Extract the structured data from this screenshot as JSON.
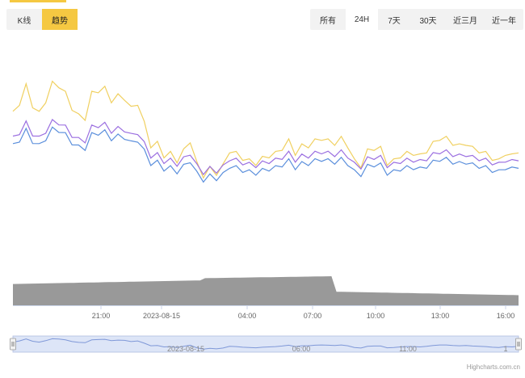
{
  "tabs_left": {
    "kline": "K线",
    "trend": "趋势",
    "active": "trend"
  },
  "range_buttons": [
    {
      "id": "all",
      "label": "所有"
    },
    {
      "id": "24h",
      "label": "24H",
      "active": true
    },
    {
      "id": "7d",
      "label": "7天"
    },
    {
      "id": "30d",
      "label": "30天"
    },
    {
      "id": "3m",
      "label": "近三月"
    },
    {
      "id": "1y",
      "label": "近一年"
    }
  ],
  "credit": "Highcharts.com.cn",
  "colors": {
    "accent": "#f5c842",
    "series_yellow": "#f0d060",
    "series_purple": "#9b6fe0",
    "series_blue": "#5b8fdc",
    "volume": "#999999",
    "navigator_fill": "#dde5f7",
    "navigator_line": "#7f98d8"
  },
  "chart_data": {
    "type": "line",
    "x_tick_labels": [
      "21:00",
      "2023-08-15",
      "04:00",
      "07:00",
      "10:00",
      "13:00",
      "16:00"
    ],
    "navigator_labels": [
      "2023-08-15",
      "06:00",
      "11:00",
      "1"
    ],
    "series": [
      {
        "values": [
          108,
          104,
          97,
          105,
          108,
          103,
          96,
          97,
          100,
          106,
          109,
          110,
          100,
          99,
          98,
          103,
          101,
          102,
          106,
          104,
          112,
          121,
          120,
          125,
          124,
          127,
          123,
          119,
          128,
          133,
          130,
          132,
          129,
          123,
          124,
          126,
          127,
          128,
          126,
          125,
          124,
          122,
          119,
          124,
          121,
          121,
          119,
          118,
          119,
          120,
          118,
          121,
          127,
          129,
          123,
          122,
          122,
          128,
          127,
          125,
          124,
          124,
          125,
          123,
          120,
          118,
          118,
          120,
          121,
          120,
          122,
          123,
          124,
          126,
          127,
          124,
          125,
          123
        ]
      },
      {
        "values": [
          139,
          136,
          134,
          135,
          136,
          134,
          132,
          133,
          134,
          135,
          137,
          136,
          135,
          134,
          134,
          135,
          134,
          135,
          136,
          136,
          141,
          147,
          152,
          158,
          159,
          161,
          158,
          156,
          158,
          160,
          159,
          160,
          158,
          156,
          157,
          156,
          156,
          157,
          156,
          156,
          155,
          154,
          154,
          155,
          154,
          154,
          153,
          153,
          154,
          154,
          153,
          154,
          156,
          157,
          155,
          155,
          155,
          157,
          157,
          156,
          155,
          155,
          155,
          155,
          154,
          154,
          154,
          154,
          154,
          154,
          155,
          155,
          155,
          156,
          156,
          155,
          155,
          155
        ]
      },
      {
        "values": [
          132,
          131,
          131,
          131,
          131,
          131,
          131,
          131,
          131,
          131,
          131,
          131,
          131,
          131,
          131,
          131,
          131,
          131,
          131,
          131,
          132,
          133,
          134,
          135,
          135,
          135,
          135,
          135,
          135,
          135,
          135,
          135,
          135,
          135,
          135,
          135,
          135,
          135,
          135,
          135,
          135,
          135,
          135,
          135,
          135,
          135,
          135,
          135,
          135,
          135,
          135,
          136,
          137,
          138,
          138,
          138,
          138,
          138,
          138,
          138,
          138,
          138,
          138,
          138,
          138,
          138,
          138,
          138,
          138,
          138,
          138,
          138,
          138,
          138,
          138,
          138,
          138,
          138
        ]
      }
    ]
  }
}
